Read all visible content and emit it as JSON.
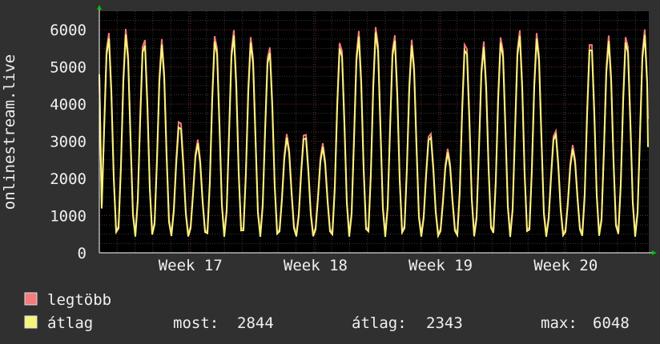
{
  "chart_data": {
    "type": "line",
    "ylabel": "onlinestream.live",
    "xlabel": "",
    "ylim": [
      0,
      6500
    ],
    "yticks": [
      0,
      1000,
      2000,
      3000,
      4000,
      5000,
      6000
    ],
    "xticks": [
      "Week 17",
      "Week 18",
      "Week 19",
      "Week 20",
      "Week"
    ],
    "grid": true,
    "background": "#000000",
    "colors": {
      "max": "#f27b80",
      "avg": "#f6f57b",
      "grid_major": "#7a2a2a",
      "grid_minor": "#3a3a3a",
      "axis": "#ffffff",
      "arrow": "#00c000"
    },
    "daily_peaks": [
      {
        "max": 6000,
        "avg": 5850
      },
      {
        "max": 6050,
        "avg": 5900
      },
      {
        "max": 5900,
        "avg": 5750
      },
      {
        "max": 5750,
        "avg": 5600
      },
      {
        "max": 3650,
        "avg": 3500
      },
      {
        "max": 3050,
        "avg": 2950
      },
      {
        "max": 5950,
        "avg": 5800
      },
      {
        "max": 6050,
        "avg": 5900
      },
      {
        "max": 5850,
        "avg": 5700
      },
      {
        "max": 5650,
        "avg": 5500
      },
      {
        "max": 3200,
        "avg": 3100
      },
      {
        "max": 3300,
        "avg": 3200
      },
      {
        "max": 2950,
        "avg": 2850
      },
      {
        "max": 5800,
        "avg": 5650
      },
      {
        "max": 6000,
        "avg": 5850
      },
      {
        "max": 6150,
        "avg": 6000
      },
      {
        "max": 5950,
        "avg": 5800
      },
      {
        "max": 5750,
        "avg": 5600
      },
      {
        "max": 3300,
        "avg": 3200
      },
      {
        "max": 2800,
        "avg": 2700
      },
      {
        "max": 5800,
        "avg": 5650
      },
      {
        "max": 5700,
        "avg": 5550
      },
      {
        "max": 5900,
        "avg": 5750
      },
      {
        "max": 6050,
        "avg": 5900
      },
      {
        "max": 5950,
        "avg": 5800
      },
      {
        "max": 3350,
        "avg": 3250
      },
      {
        "max": 2900,
        "avg": 2800
      },
      {
        "max": 5850,
        "avg": 5700
      },
      {
        "max": 5850,
        "avg": 5700
      },
      {
        "max": 5950,
        "avg": 5800
      },
      {
        "max": 6050,
        "avg": 5900
      }
    ],
    "series": [
      {
        "name": "legtöbb",
        "color": "#f27b80"
      },
      {
        "name": "átlag",
        "color": "#f6f57b"
      }
    ]
  },
  "legend": {
    "max_label": "legtöbb",
    "avg_label": "átlag",
    "stats": {
      "now_label": "most:",
      "now_value": "2844",
      "avg_label": "átlag:",
      "avg_value": "2343",
      "max_label": "max:",
      "max_value": "6048"
    }
  }
}
